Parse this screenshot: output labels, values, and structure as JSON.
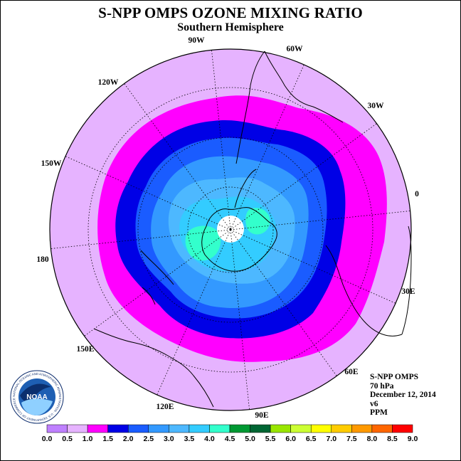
{
  "title": "S-NPP OMPS OZONE MIXING RATIO",
  "subtitle": "Southern Hemisphere",
  "longitude_labels": [
    "90W",
    "60W",
    "30W",
    "0",
    "30E",
    "60E",
    "90E",
    "120E",
    "150E",
    "180",
    "150W",
    "120W"
  ],
  "info": {
    "instrument": "S-NPP OMPS",
    "level": "70 hPa",
    "date": "December 12, 2014",
    "version": "v6",
    "units": "PPM"
  },
  "logo": {
    "text": "NOAA",
    "ring_text": "NATIONAL OCEANIC AND ATMOSPHERIC ADMINISTRATION · U.S. DEPARTMENT OF COMMERCE"
  },
  "colorbar": {
    "ticks": [
      "0.0",
      "0.5",
      "1.0",
      "1.5",
      "2.0",
      "2.5",
      "3.0",
      "3.5",
      "4.0",
      "4.5",
      "5.0",
      "5.5",
      "6.0",
      "6.5",
      "7.0",
      "7.5",
      "8.0",
      "8.5",
      "9.0"
    ],
    "colors": [
      "#bf80ff",
      "#e6b3ff",
      "#ff00ff",
      "#0000e6",
      "#1a5cff",
      "#3399ff",
      "#4db8ff",
      "#33ccff",
      "#33ffcc",
      "#009933",
      "#006633",
      "#99e600",
      "#ccff33",
      "#ffff00",
      "#ffcc00",
      "#ff9900",
      "#ff6600",
      "#ff0000",
      "#8b5a2b"
    ]
  },
  "chart_data": {
    "type": "heatmap",
    "projection": "south-polar-stereographic",
    "variable": "ozone mixing ratio",
    "units": "PPM",
    "pressure_level": "70 hPa",
    "date": "December 12, 2014",
    "scale_min": 0.0,
    "scale_max": 9.0,
    "levels": [
      {
        "range": [
          0.5,
          1.0
        ],
        "color": "#e6b3ff",
        "description": "outer region"
      },
      {
        "range": [
          1.0,
          1.5
        ],
        "color": "#ff00ff"
      },
      {
        "range": [
          1.5,
          2.0
        ],
        "color": "#0000e6"
      },
      {
        "range": [
          2.0,
          2.5
        ],
        "color": "#1a5cff"
      },
      {
        "range": [
          2.5,
          3.0
        ],
        "color": "#3399ff"
      },
      {
        "range": [
          3.0,
          3.5
        ],
        "color": "#4db8ff"
      },
      {
        "range": [
          3.5,
          4.0
        ],
        "color": "#33ccff"
      },
      {
        "range": [
          4.0,
          4.5
        ],
        "color": "#33ffcc"
      }
    ],
    "missing_data_at_pole": true,
    "grid": true
  }
}
